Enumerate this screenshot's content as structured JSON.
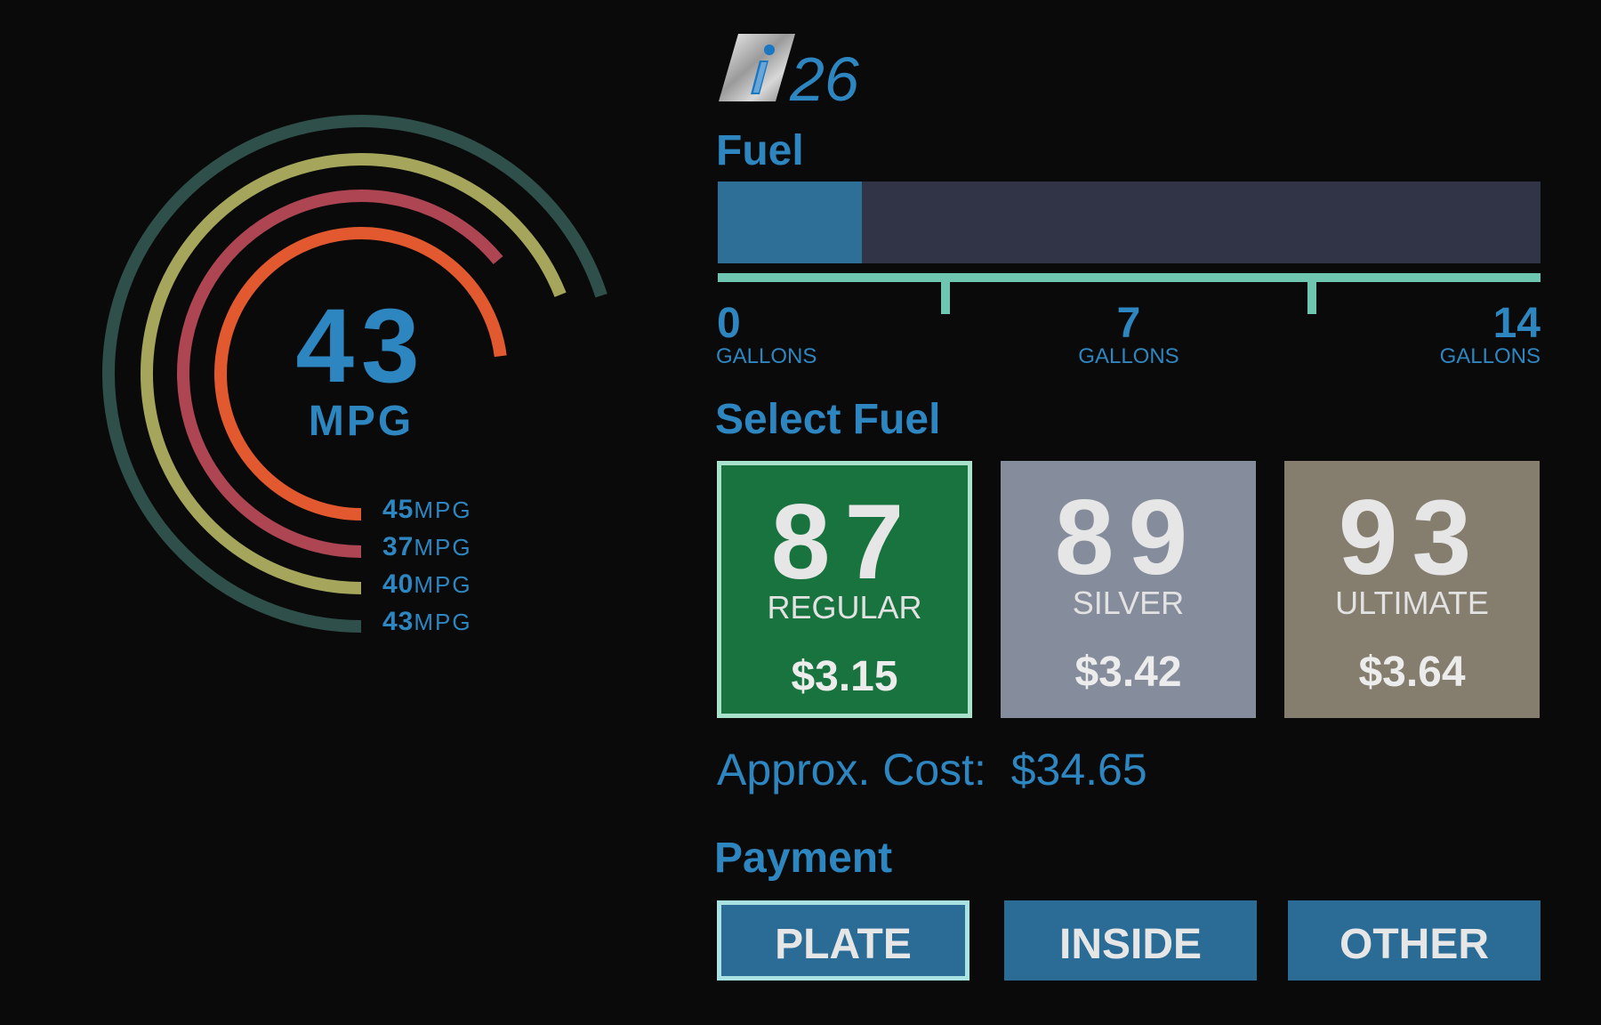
{
  "header": {
    "logo_number": "26"
  },
  "colors": {
    "accent_blue": "#2e86c1",
    "scale_teal": "#6fc6b0",
    "ring_outer": "#2f4f4a",
    "ring_yellow": "#a5a55c",
    "ring_red": "#ad4553",
    "ring_orange": "#e2592f"
  },
  "gauge": {
    "value": "43",
    "unit": "MPG",
    "rings": [
      {
        "value": "45",
        "unit": "MPG",
        "color": "#e2592f",
        "sweep_fraction": 0.73
      },
      {
        "value": "37",
        "unit": "MPG",
        "color": "#ad4553",
        "sweep_fraction": 0.64
      },
      {
        "value": "40",
        "unit": "MPG",
        "color": "#a5a55c",
        "sweep_fraction": 0.69
      },
      {
        "value": "43",
        "unit": "MPG",
        "color": "#2f4f4a",
        "sweep_fraction": 0.7
      }
    ]
  },
  "fuel": {
    "title": "Fuel",
    "level_fraction": 0.175,
    "scale": [
      {
        "value": "0",
        "unit": "GALLONS"
      },
      {
        "value": "7",
        "unit": "GALLONS"
      },
      {
        "value": "14",
        "unit": "GALLONS"
      }
    ]
  },
  "select_fuel": {
    "title": "Select Fuel",
    "options": [
      {
        "grade": "87",
        "name": "REGULAR",
        "price": "$3.15",
        "color": "#18733e",
        "selected": true
      },
      {
        "grade": "89",
        "name": "SILVER",
        "price": "$3.42",
        "color": "#858c9b",
        "selected": false
      },
      {
        "grade": "93",
        "name": "ULTIMATE",
        "price": "$3.64",
        "color": "#857d6d",
        "selected": false
      }
    ]
  },
  "approx_cost": {
    "label": "Approx. Cost:",
    "value": "$34.65"
  },
  "payment": {
    "title": "Payment",
    "options": [
      {
        "label": "PLATE",
        "selected": true
      },
      {
        "label": "INSIDE",
        "selected": false
      },
      {
        "label": "OTHER",
        "selected": false
      }
    ]
  }
}
